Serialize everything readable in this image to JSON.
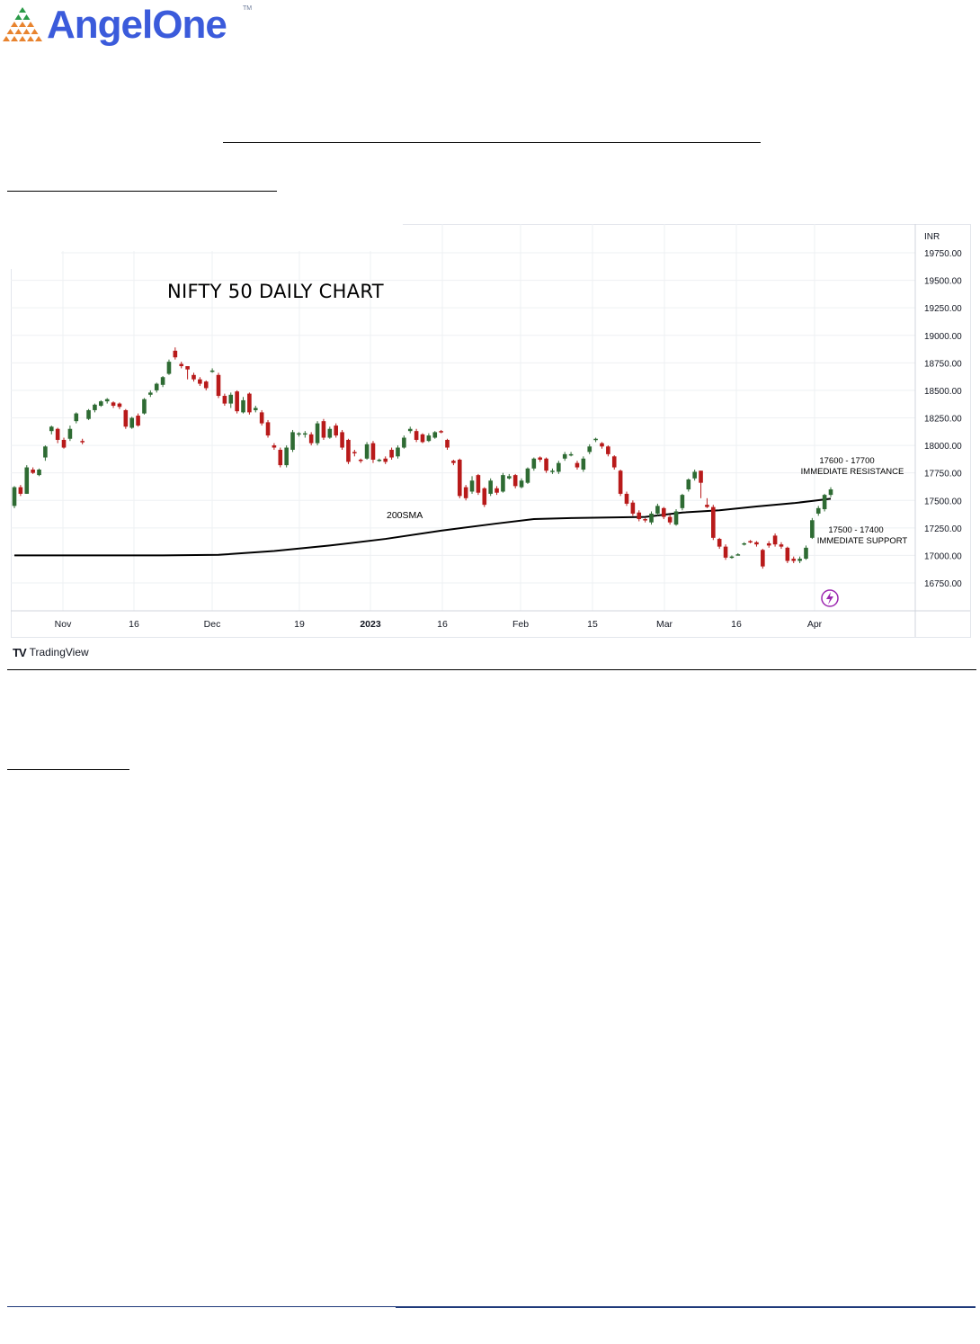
{
  "brand": {
    "name": "AngelOne",
    "trademark": "TM",
    "colors": {
      "primary": "#3b5bdb",
      "triangle_orange": "#e8832e",
      "triangle_green": "#2b9a48"
    }
  },
  "chart_data": {
    "type": "candlestick",
    "title": "NIFTY 50 DAILY CHART",
    "currency_label": "INR",
    "y_ticks": [
      "19750.00",
      "19500.00",
      "19250.00",
      "19000.00",
      "18750.00",
      "18500.00",
      "18250.00",
      "18000.00",
      "17750.00",
      "17500.00",
      "17250.00",
      "17000.00",
      "16750.00"
    ],
    "x_ticks": [
      "Nov",
      "16",
      "Dec",
      "19",
      "2023",
      "16",
      "Feb",
      "15",
      "Mar",
      "16",
      "Apr"
    ],
    "ylim": [
      16500,
      19900
    ],
    "annotations": [
      {
        "text_line1": "17600 - 17700",
        "text_line2": "IMMEDIATE RESISTANCE"
      },
      {
        "text_line1": "17500 - 17400",
        "text_line2": "IMMEDIATE SUPPORT"
      },
      {
        "text_line1": "200SMA",
        "text_line2": ""
      }
    ],
    "sma_200": [
      [
        0,
        17000
      ],
      [
        20,
        17000
      ],
      [
        40,
        17000
      ],
      [
        55,
        17005
      ],
      [
        70,
        17040
      ],
      [
        85,
        17090
      ],
      [
        100,
        17150
      ],
      [
        115,
        17225
      ],
      [
        130,
        17290
      ],
      [
        140,
        17330
      ],
      [
        150,
        17340
      ],
      [
        160,
        17345
      ],
      [
        170,
        17350
      ],
      [
        180,
        17390
      ],
      [
        190,
        17410
      ],
      [
        200,
        17445
      ],
      [
        210,
        17475
      ],
      [
        215,
        17495
      ],
      [
        220,
        17515
      ]
    ],
    "candles": [
      [
        0,
        17450,
        17620,
        17430,
        17630
      ],
      [
        1,
        17620,
        17560,
        17540,
        17640
      ],
      [
        2,
        17560,
        17800,
        17560,
        17820
      ],
      [
        3,
        17780,
        17750,
        17740,
        17800
      ],
      [
        4,
        17730,
        17780,
        17720,
        17790
      ],
      [
        5,
        17890,
        17990,
        17860,
        18000
      ],
      [
        6,
        18130,
        18170,
        18100,
        18180
      ],
      [
        7,
        18150,
        18050,
        18020,
        18160
      ],
      [
        8,
        18050,
        17980,
        17970,
        18070
      ],
      [
        9,
        18060,
        18150,
        18040,
        18180
      ],
      [
        10,
        18220,
        18290,
        18200,
        18300
      ],
      [
        11,
        18040,
        18030,
        18010,
        18060
      ],
      [
        12,
        18240,
        18320,
        18230,
        18330
      ],
      [
        13,
        18320,
        18370,
        18300,
        18380
      ],
      [
        14,
        18360,
        18400,
        18350,
        18410
      ],
      [
        15,
        18400,
        18420,
        18380,
        18430
      ],
      [
        16,
        18390,
        18360,
        18340,
        18400
      ],
      [
        17,
        18380,
        18350,
        18330,
        18390
      ],
      [
        18,
        18320,
        18170,
        18150,
        18330
      ],
      [
        19,
        18160,
        18250,
        18150,
        18260
      ],
      [
        20,
        18270,
        18180,
        18170,
        18290
      ],
      [
        21,
        18290,
        18420,
        18280,
        18430
      ],
      [
        22,
        18460,
        18480,
        18440,
        18500
      ],
      [
        23,
        18500,
        18560,
        18480,
        18570
      ],
      [
        24,
        18550,
        18620,
        18530,
        18630
      ],
      [
        25,
        18650,
        18760,
        18640,
        18780
      ],
      [
        26,
        18860,
        18800,
        18780,
        18890
      ],
      [
        27,
        18740,
        18720,
        18700,
        18760
      ],
      [
        28,
        18720,
        18690,
        18600,
        18720
      ],
      [
        29,
        18640,
        18600,
        18580,
        18660
      ],
      [
        30,
        18600,
        18560,
        18540,
        18620
      ],
      [
        31,
        18580,
        18520,
        18500,
        18590
      ],
      [
        32,
        18680,
        18680,
        18660,
        18700
      ],
      [
        33,
        18640,
        18450,
        18430,
        18660
      ],
      [
        34,
        18450,
        18380,
        18360,
        18470
      ],
      [
        35,
        18380,
        18460,
        18340,
        18480
      ],
      [
        36,
        18490,
        18310,
        18290,
        18500
      ],
      [
        37,
        18300,
        18410,
        18290,
        18440
      ],
      [
        38,
        18470,
        18300,
        18280,
        18480
      ],
      [
        39,
        18320,
        18340,
        18300,
        18360
      ],
      [
        40,
        18300,
        18200,
        18180,
        18320
      ],
      [
        41,
        18210,
        18090,
        18070,
        18230
      ],
      [
        42,
        18000,
        17980,
        17960,
        18020
      ],
      [
        43,
        17960,
        17820,
        17800,
        17980
      ],
      [
        44,
        17820,
        17980,
        17800,
        18000
      ],
      [
        45,
        17960,
        18120,
        17940,
        18140
      ],
      [
        46,
        18100,
        18110,
        18080,
        18120
      ],
      [
        47,
        18100,
        18110,
        18070,
        18130
      ],
      [
        48,
        18100,
        18020,
        18000,
        18120
      ],
      [
        49,
        18020,
        18200,
        18000,
        18220
      ],
      [
        50,
        18220,
        18070,
        18050,
        18240
      ],
      [
        51,
        18070,
        18150,
        18060,
        18170
      ],
      [
        52,
        18180,
        18090,
        18070,
        18200
      ],
      [
        53,
        18120,
        17980,
        17960,
        18140
      ],
      [
        54,
        18050,
        17850,
        17830,
        18060
      ],
      [
        55,
        17940,
        17930,
        17900,
        17960
      ],
      [
        56,
        17870,
        17860,
        17840,
        17880
      ],
      [
        57,
        17880,
        18010,
        17870,
        18030
      ],
      [
        58,
        18020,
        17870,
        17840,
        18040
      ],
      [
        59,
        17870,
        17870,
        17850,
        17880
      ],
      [
        60,
        17880,
        17850,
        17830,
        17900
      ],
      [
        61,
        17960,
        17890,
        17870,
        17980
      ],
      [
        62,
        17900,
        17980,
        17880,
        18000
      ],
      [
        63,
        17980,
        18070,
        17970,
        18090
      ],
      [
        64,
        18130,
        18150,
        18110,
        18170
      ],
      [
        65,
        18130,
        18050,
        18030,
        18150
      ],
      [
        66,
        18100,
        18030,
        18020,
        18110
      ],
      [
        67,
        18040,
        18090,
        18030,
        18110
      ],
      [
        68,
        18070,
        18120,
        18060,
        18130
      ],
      [
        69,
        18130,
        18120,
        18110,
        18140
      ],
      [
        70,
        18050,
        17980,
        17960,
        18060
      ],
      [
        71,
        17860,
        17840,
        17820,
        17870
      ],
      [
        72,
        17870,
        17540,
        17520,
        17880
      ],
      [
        73,
        17620,
        17520,
        17500,
        17640
      ],
      [
        74,
        17580,
        17680,
        17560,
        17720
      ],
      [
        75,
        17730,
        17570,
        17550,
        17740
      ],
      [
        76,
        17610,
        17460,
        17440,
        17620
      ],
      [
        77,
        17560,
        17680,
        17540,
        17700
      ],
      [
        78,
        17610,
        17570,
        17550,
        17630
      ],
      [
        79,
        17580,
        17730,
        17570,
        17750
      ],
      [
        80,
        17700,
        17720,
        17690,
        17740
      ],
      [
        81,
        17730,
        17630,
        17610,
        17740
      ],
      [
        82,
        17620,
        17680,
        17610,
        17700
      ],
      [
        83,
        17660,
        17790,
        17650,
        17800
      ],
      [
        84,
        17790,
        17880,
        17770,
        17890
      ],
      [
        85,
        17890,
        17870,
        17850,
        17900
      ],
      [
        86,
        17880,
        17770,
        17750,
        17890
      ],
      [
        87,
        17760,
        17770,
        17740,
        17790
      ],
      [
        88,
        17760,
        17840,
        17740,
        17860
      ],
      [
        89,
        17880,
        17920,
        17860,
        17940
      ],
      [
        90,
        17920,
        17920,
        17900,
        17940
      ],
      [
        91,
        17840,
        17800,
        17780,
        17860
      ],
      [
        92,
        17780,
        17880,
        17760,
        17900
      ],
      [
        93,
        17940,
        17990,
        17920,
        18010
      ],
      [
        94,
        18050,
        18060,
        18030,
        18070
      ],
      [
        95,
        18020,
        17990,
        17970,
        18030
      ],
      [
        96,
        17990,
        17920,
        17900,
        18000
      ],
      [
        97,
        17900,
        17800,
        17780,
        17910
      ],
      [
        98,
        17770,
        17560,
        17540,
        17780
      ],
      [
        99,
        17560,
        17470,
        17450,
        17580
      ],
      [
        100,
        17480,
        17380,
        17360,
        17500
      ],
      [
        101,
        17390,
        17330,
        17310,
        17410
      ],
      [
        102,
        17330,
        17320,
        17300,
        17340
      ],
      [
        103,
        17300,
        17380,
        17280,
        17400
      ],
      [
        104,
        17380,
        17450,
        17360,
        17470
      ],
      [
        105,
        17430,
        17350,
        17330,
        17440
      ],
      [
        106,
        17350,
        17300,
        17280,
        17370
      ],
      [
        107,
        17280,
        17400,
        17270,
        17420
      ],
      [
        108,
        17430,
        17550,
        17410,
        17560
      ],
      [
        109,
        17600,
        17690,
        17580,
        17700
      ],
      [
        110,
        17700,
        17760,
        17680,
        17780
      ],
      [
        111,
        17770,
        17660,
        17520,
        17770
      ],
      [
        112,
        17460,
        17440,
        17430,
        17520
      ],
      [
        113,
        17440,
        17160,
        17140,
        17460
      ],
      [
        114,
        17150,
        17080,
        17060,
        17160
      ],
      [
        115,
        17080,
        16980,
        16960,
        17100
      ],
      [
        116,
        16990,
        16990,
        16970,
        17000
      ],
      [
        117,
        17010,
        17010,
        17000,
        17020
      ],
      [
        118,
        17100,
        17110,
        17090,
        17120
      ],
      [
        119,
        17130,
        17120,
        17110,
        17140
      ],
      [
        120,
        17120,
        17100,
        17080,
        17130
      ],
      [
        121,
        17050,
        16900,
        16880,
        17060
      ],
      [
        122,
        17110,
        17090,
        17070,
        17130
      ],
      [
        123,
        17180,
        17100,
        17080,
        17200
      ],
      [
        124,
        17100,
        17080,
        17060,
        17120
      ],
      [
        125,
        17070,
        16950,
        16930,
        17080
      ],
      [
        126,
        16970,
        16950,
        16930,
        16990
      ],
      [
        127,
        16950,
        16970,
        16930,
        16990
      ],
      [
        128,
        16970,
        17070,
        16960,
        17090
      ],
      [
        129,
        17160,
        17320,
        17150,
        17340
      ],
      [
        130,
        17380,
        17430,
        17360,
        17450
      ],
      [
        131,
        17420,
        17550,
        17400,
        17560
      ],
      [
        132,
        17550,
        17600,
        17530,
        17620
      ]
    ],
    "grid": true,
    "colors": {
      "up": "#2e6b33",
      "down": "#b81a1a",
      "sma": "#000000",
      "axis_text": "#131722",
      "badge": "#9c27b0"
    }
  },
  "tradingview": {
    "label": "TradingView",
    "logo_mark": "TV"
  }
}
